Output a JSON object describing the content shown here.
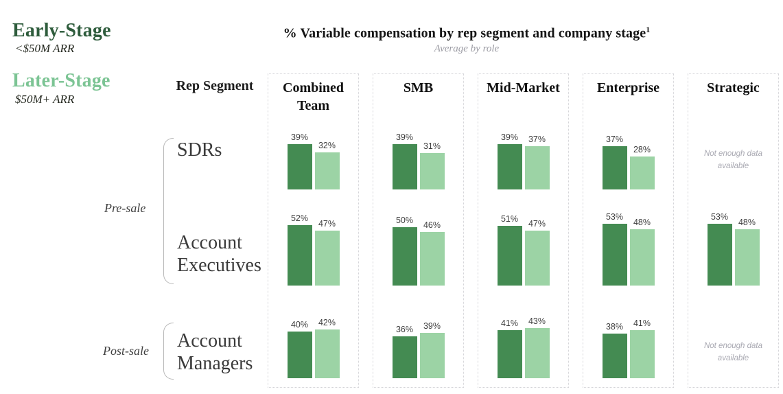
{
  "legend": {
    "early": {
      "label": "Early-Stage",
      "sublabel": "<$50M ARR",
      "color": "#2E5C3C"
    },
    "later": {
      "label": "Later-Stage",
      "sublabel": "$50M+ ARR",
      "color": "#7CC494"
    }
  },
  "header": {
    "title": "% Variable compensation by rep segment and company stage",
    "footnote_marker": "1",
    "subtitle": "Average by role"
  },
  "rows_panel": {
    "rep_segment_label": "Rep Segment",
    "groups": [
      {
        "label": "Pre-sale"
      },
      {
        "label": "Post-sale"
      }
    ],
    "segments": [
      {
        "label": "SDRs"
      },
      {
        "label": "Account Executives"
      },
      {
        "label": "Account Managers"
      }
    ]
  },
  "chart_data": {
    "type": "bar",
    "title": "% Variable compensation by rep segment and company stage¹",
    "subtitle": "Average by role",
    "value_unit": "%",
    "categories": [
      "Combined Team",
      "SMB",
      "Mid-Market",
      "Enterprise",
      "Strategic"
    ],
    "row_segments": [
      "SDRs",
      "Account Executives",
      "Account Managers"
    ],
    "series": [
      {
        "name": "Early-Stage",
        "arr_range": "<$50M ARR",
        "color": "#448B52",
        "values_by_segment": {
          "SDRs": [
            39,
            39,
            39,
            37,
            null
          ],
          "Account Executives": [
            52,
            50,
            51,
            53,
            53
          ],
          "Account Managers": [
            40,
            36,
            41,
            38,
            null
          ]
        }
      },
      {
        "name": "Later-Stage",
        "arr_range": "$50M+ ARR",
        "color": "#9CD3A5",
        "values_by_segment": {
          "SDRs": [
            32,
            31,
            37,
            28,
            null
          ],
          "Account Executives": [
            47,
            46,
            47,
            48,
            48
          ],
          "Account Managers": [
            42,
            39,
            43,
            41,
            null
          ]
        }
      }
    ],
    "no_data_label": "Not enough data available",
    "legend_position": "top-left",
    "grid": false
  }
}
